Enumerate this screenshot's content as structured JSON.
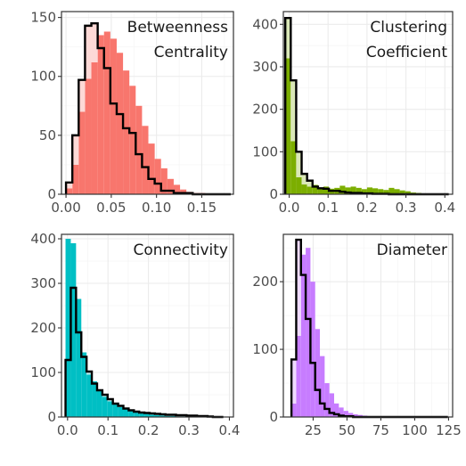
{
  "chart_data": [
    {
      "type": "bar",
      "title": "Betweenness\nCentrality",
      "color": "#F8766D",
      "xlim": [
        -0.005,
        0.185
      ],
      "ylim": [
        0,
        155
      ],
      "xticks": [
        0.0,
        0.05,
        0.1,
        0.15
      ],
      "xtick_labels": [
        "0.00",
        "0.05",
        "0.10",
        "0.15"
      ],
      "yticks": [
        0,
        50,
        100,
        150
      ],
      "ytick_labels": [
        "0",
        "50",
        "100",
        "150"
      ],
      "bin_start": 0.0,
      "bin_width": 0.007,
      "series": [
        {
          "name": "",
          "style": "filled",
          "values": [
            5,
            25,
            70,
            98,
            112,
            135,
            138,
            132,
            120,
            105,
            92,
            75,
            58,
            43,
            30,
            22,
            13,
            8,
            4,
            2,
            1,
            1,
            0,
            0,
            0,
            0
          ]
        },
        {
          "name": "",
          "style": "step",
          "values": [
            10,
            50,
            97,
            143,
            145,
            124,
            107,
            77,
            68,
            56,
            52,
            34,
            23,
            13,
            9,
            3,
            3,
            1,
            1,
            1,
            0,
            0,
            0,
            0,
            0,
            0
          ]
        }
      ]
    },
    {
      "type": "bar",
      "title": "Clustering\nCoefficient",
      "color": "#7CAE00",
      "xlim": [
        -0.015,
        0.42
      ],
      "ylim": [
        0,
        430
      ],
      "xticks": [
        0.0,
        0.1,
        0.2,
        0.3,
        0.4
      ],
      "xtick_labels": [
        "0.0",
        "0.1",
        "0.2",
        "0.3",
        "0.4"
      ],
      "yticks": [
        0,
        100,
        200,
        300,
        400
      ],
      "ytick_labels": [
        "0",
        "100",
        "200",
        "300",
        "400"
      ],
      "bin_start": -0.01,
      "bin_width": 0.014,
      "series": [
        {
          "name": "",
          "style": "filled",
          "values": [
            320,
            125,
            40,
            23,
            18,
            22,
            16,
            18,
            13,
            15,
            20,
            16,
            18,
            15,
            12,
            16,
            14,
            12,
            10,
            15,
            12,
            9,
            7,
            4,
            3,
            2,
            1,
            0,
            0,
            0
          ]
        },
        {
          "name": "",
          "style": "step",
          "values": [
            415,
            268,
            100,
            48,
            32,
            18,
            14,
            13,
            8,
            8,
            6,
            4,
            3,
            3,
            2,
            2,
            1,
            1,
            1,
            0,
            0,
            0,
            0,
            0,
            0,
            0,
            0,
            0,
            0,
            0
          ]
        }
      ]
    },
    {
      "type": "bar",
      "title": "Connectivity",
      "color": "#00BFC4",
      "xlim": [
        -0.015,
        0.41
      ],
      "ylim": [
        0,
        410
      ],
      "xticks": [
        0.0,
        0.1,
        0.2,
        0.3,
        0.4
      ],
      "xtick_labels": [
        "0.0",
        "0.1",
        "0.2",
        "0.3",
        "0.4"
      ],
      "yticks": [
        0,
        100,
        200,
        300,
        400
      ],
      "ytick_labels": [
        "0",
        "100",
        "200",
        "300",
        "400"
      ],
      "bin_start": -0.005,
      "bin_width": 0.013,
      "series": [
        {
          "name": "",
          "style": "filled",
          "values": [
            400,
            390,
            265,
            145,
            95,
            80,
            60,
            45,
            35,
            28,
            22,
            18,
            14,
            11,
            9,
            7,
            5,
            4,
            3,
            2,
            2,
            1,
            1,
            0,
            0,
            0,
            0,
            0,
            0,
            0
          ]
        },
        {
          "name": "",
          "style": "step",
          "values": [
            128,
            290,
            190,
            135,
            102,
            75,
            60,
            50,
            40,
            30,
            25,
            19,
            15,
            12,
            10,
            9,
            8,
            7,
            6,
            5,
            5,
            4,
            4,
            3,
            3,
            2,
            2,
            1,
            0,
            0
          ]
        }
      ]
    },
    {
      "type": "bar",
      "title": "Diameter",
      "color": "#C77CFF",
      "xlim": [
        3,
        128
      ],
      "ylim": [
        0,
        270
      ],
      "xticks": [
        25,
        50,
        75,
        100,
        125
      ],
      "xtick_labels": [
        "25",
        "50",
        "75",
        "100",
        "125"
      ],
      "yticks": [
        0,
        100,
        200
      ],
      "ytick_labels": [
        "0",
        "100",
        "200"
      ],
      "bin_start": 9,
      "bin_width": 3.5,
      "series": [
        {
          "name": "",
          "style": "filled",
          "values": [
            20,
            120,
            240,
            250,
            200,
            130,
            90,
            50,
            35,
            20,
            14,
            9,
            6,
            4,
            3,
            2,
            1,
            1,
            0,
            0,
            0,
            0,
            0,
            0,
            0,
            0,
            0,
            0,
            0,
            0,
            0,
            0,
            0
          ]
        },
        {
          "name": "",
          "style": "step",
          "values": [
            85,
            262,
            210,
            145,
            80,
            40,
            20,
            12,
            6,
            4,
            2,
            1,
            1,
            0,
            0,
            0,
            0,
            0,
            0,
            0,
            0,
            0,
            0,
            0,
            0,
            0,
            0,
            0,
            0,
            0,
            0,
            0,
            0
          ]
        }
      ]
    }
  ]
}
